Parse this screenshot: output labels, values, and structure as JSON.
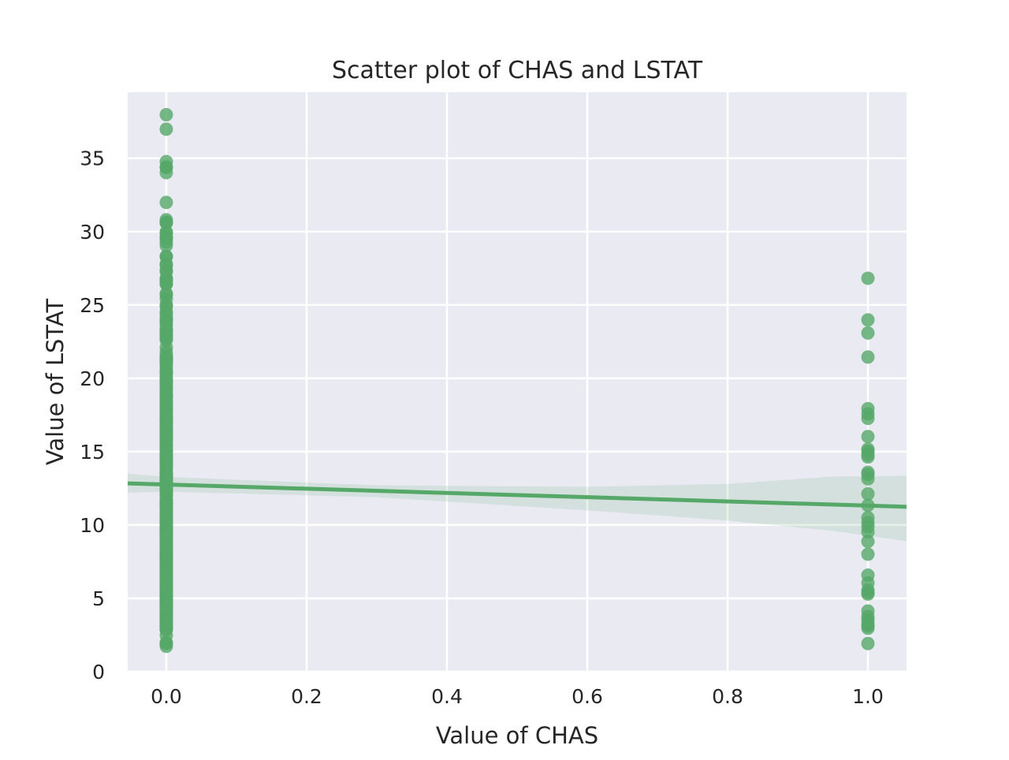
{
  "chart_data": {
    "type": "scatter",
    "title": "Scatter plot of CHAS and LSTAT",
    "xlabel": "Value of CHAS",
    "ylabel": "Value of LSTAT",
    "xlim": [
      -0.055,
      1.055
    ],
    "ylim": [
      0,
      39.5
    ],
    "xticks": [
      0.0,
      0.2,
      0.4,
      0.6,
      0.8,
      1.0
    ],
    "xtick_labels": [
      "0.0",
      "0.2",
      "0.4",
      "0.6",
      "0.8",
      "1.0"
    ],
    "yticks": [
      0,
      5,
      10,
      15,
      20,
      25,
      30,
      35
    ],
    "ytick_labels": [
      "0",
      "5",
      "10",
      "15",
      "20",
      "25",
      "30",
      "35"
    ],
    "grid": true,
    "legend": "none",
    "background_color": "#eaeaf2",
    "point_color": "#55a868",
    "series": [
      {
        "x": 0,
        "values": [
          37.97,
          36.98,
          34.77,
          34.41,
          34.37,
          34.02,
          31.99,
          30.81,
          30.63,
          30.62,
          30.59,
          29.97,
          29.93,
          29.68,
          29.55,
          29.53,
          29.29,
          29.05,
          28.32,
          28.28,
          27.8,
          27.71,
          27.38,
          27.26,
          26.82,
          26.77,
          26.64,
          26.45,
          26.42,
          25.79,
          25.68,
          25.41,
          25.0,
          24.91,
          24.56,
          24.39,
          24.16,
          23.98,
          23.97,
          23.79,
          23.6,
          23.34,
          23.29,
          23.27,
          23.24,
          23.09,
          22.98,
          22.88,
          22.74,
          22.6,
          22.11,
          21.78,
          21.52,
          21.46,
          21.45,
          21.32,
          21.24,
          21.22,
          21.14,
          21.08,
          21.02,
          20.85,
          20.62,
          20.45,
          20.34,
          20.31,
          20.08,
          19.92,
          19.88,
          19.78,
          19.77,
          19.69,
          19.52,
          19.37,
          19.31,
          19.15,
          19.01,
          18.85,
          18.8,
          18.76,
          18.72,
          18.71,
          18.68,
          18.66,
          18.46,
          18.35,
          18.33,
          18.14,
          18.13,
          18.06,
          18.05,
          18.03,
          17.93,
          17.92,
          17.79,
          17.73,
          17.64,
          17.6,
          17.58,
          17.44,
          17.31,
          17.28,
          17.27,
          17.21,
          17.19,
          17.16,
          17.15,
          17.12,
          17.11,
          17.1,
          16.94,
          16.9,
          16.74,
          16.65,
          16.59,
          16.51,
          16.47,
          16.44,
          16.42,
          16.35,
          16.3,
          16.29,
          16.23,
          16.22,
          16.21,
          16.2,
          16.14,
          16.03,
          15.94,
          15.84,
          15.79,
          15.76,
          15.71,
          15.69,
          15.55,
          15.39,
          15.37,
          15.17,
          15.12,
          15.1,
          15.03,
          15.02,
          14.98,
          14.81,
          14.8,
          14.79,
          14.7,
          14.69,
          14.67,
          14.66,
          14.65,
          14.64,
          14.59,
          14.43,
          14.37,
          14.36,
          14.33,
          14.27,
          14.19,
          14.15,
          14.13,
          14.1,
          14.09,
          14.0,
          13.99,
          13.98,
          13.83,
          13.65,
          13.59,
          13.51,
          13.45,
          13.44,
          13.35,
          13.34,
          13.33,
          13.28,
          13.27,
          13.22,
          13.15,
          13.11,
          13.09,
          13.04,
          13.0,
          12.93,
          12.92,
          12.87,
          12.86,
          12.8,
          12.79,
          12.67,
          12.64,
          12.6,
          12.5,
          12.43,
          12.34,
          12.33,
          12.27,
          12.26,
          12.13,
          12.12,
          12.03,
          12.01,
          11.97,
          11.72,
          11.69,
          11.66,
          11.65,
          11.64,
          11.5,
          11.48,
          11.45,
          11.41,
          11.38,
          11.34,
          11.32,
          11.28,
          11.25,
          11.22,
          11.12,
          11.1,
          10.97,
          10.88,
          10.87,
          10.74,
          10.63,
          10.59,
          10.56,
          10.53,
          10.45,
          10.42,
          10.4,
          10.36,
          10.3,
          10.29,
          10.27,
          10.26,
          10.24,
          10.21,
          10.19,
          10.16,
          10.15,
          10.13,
          10.11,
          9.97,
          9.93,
          9.88,
          9.81,
          9.8,
          9.74,
          9.71,
          9.69,
          9.68,
          9.67,
          9.64,
          9.62,
          9.59,
          9.55,
          9.54,
          9.53,
          9.52,
          9.51,
          9.5,
          9.47,
          9.45,
          9.43,
          9.42,
          9.38,
          9.28,
          9.25,
          9.22,
          9.16,
          9.14,
          9.1,
          9.09,
          9.08,
          9.04,
          8.88,
          8.81,
          8.79,
          8.77,
          8.67,
          8.65,
          8.61,
          8.58,
          8.51,
          8.47,
          8.44,
          8.43,
          8.26,
          8.23,
          8.2,
          8.16,
          8.1,
          8.05,
          8.01,
          7.94,
          7.9,
          7.88,
          7.85,
          7.83,
          7.79,
          7.74,
          7.73,
          7.7,
          7.67,
          7.6,
          7.56,
          7.54,
          7.53,
          7.51,
          7.44,
          7.43,
          7.39,
          7.37,
          7.34,
          7.26,
          7.22,
          7.2,
          7.19,
          7.18,
          7.14,
          7.12,
          7.01,
          6.93,
          6.92,
          6.9,
          6.87,
          6.86,
          6.78,
          6.75,
          6.73,
          6.72,
          6.68,
          6.65,
          6.62,
          6.59,
          6.58,
          6.56,
          6.53,
          6.48,
          6.47,
          6.43,
          6.36,
          6.27,
          6.21,
          6.19,
          6.15,
          6.12,
          6.07,
          6.05,
          5.99,
          5.98,
          5.9,
          5.89,
          5.81,
          5.77,
          5.7,
          5.68,
          5.64,
          5.57,
          5.5,
          5.49,
          5.39,
          5.33,
          5.29,
          5.25,
          5.21,
          5.19,
          5.12,
          5.1,
          5.08,
          5.04,
          5.03,
          4.98,
          4.97,
          4.86,
          4.85,
          4.84,
          4.82,
          4.81,
          4.74,
          4.73,
          4.7,
          4.69,
          4.67,
          4.63,
          4.61,
          4.6,
          4.59,
          4.56,
          4.54,
          4.5,
          4.45,
          4.38,
          4.32,
          4.21,
          4.16,
          4.14,
          4.08,
          4.03,
          3.95,
          3.92,
          3.81,
          3.76,
          3.73,
          3.7,
          3.59,
          3.57,
          3.56,
          3.54,
          3.53,
          3.33,
          3.32,
          3.26,
          3.16,
          3.13,
          3.11,
          3.01,
          2.98,
          2.97,
          2.94,
          2.88,
          2.87,
          2.47,
          1.98,
          1.92,
          1.73
        ]
      },
      {
        "x": 1,
        "values": [
          26.82,
          23.98,
          23.09,
          21.45,
          17.93,
          17.58,
          17.27,
          16.03,
          15.17,
          15.02,
          14.79,
          14.64,
          13.59,
          13.44,
          13.15,
          12.12,
          11.34,
          10.5,
          10.16,
          9.88,
          9.53,
          8.88,
          8.01,
          6.58,
          6.05,
          5.57,
          5.39,
          5.29,
          4.14,
          3.76,
          3.53,
          3.26,
          3.11,
          2.96,
          1.92
        ]
      }
    ],
    "regression": {
      "x_range": [
        -0.055,
        1.055
      ],
      "intercept": 12.76,
      "slope": -1.44,
      "ci_lower": [
        [
          -0.055,
          12.2
        ],
        [
          0.0,
          12.27
        ],
        [
          0.3,
          11.9
        ],
        [
          0.6,
          11.0
        ],
        [
          0.8,
          10.3
        ],
        [
          0.95,
          9.6
        ],
        [
          1.055,
          8.9
        ]
      ],
      "ci_upper": [
        [
          -0.055,
          13.5
        ],
        [
          0.0,
          13.28
        ],
        [
          0.3,
          12.7
        ],
        [
          0.6,
          12.6
        ],
        [
          0.8,
          12.8
        ],
        [
          0.95,
          13.3
        ],
        [
          1.055,
          13.35
        ]
      ]
    }
  }
}
